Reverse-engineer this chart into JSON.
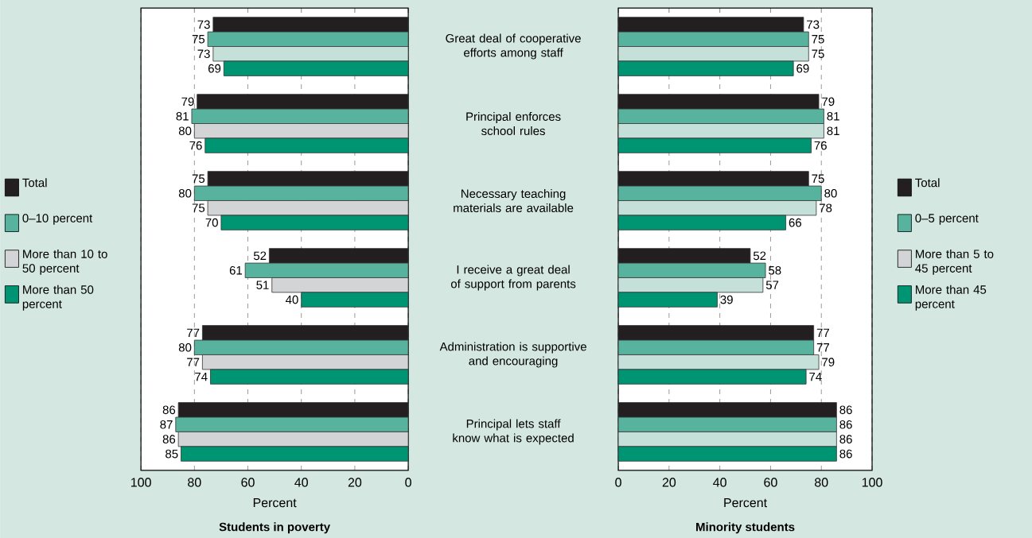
{
  "chart_data": [
    {
      "type": "bar",
      "orientation": "horizontal",
      "title": "Students in poverty",
      "xlabel": "Percent",
      "categories": [
        "Great deal of cooperative efforts among staff",
        "Principal enforces school rules",
        "Necessary teaching materials are available",
        "I receive a great deal of support from parents",
        "Administration is supportive and encouraging",
        "Principal lets staff know what is expected"
      ],
      "series": [
        {
          "name": "Total",
          "color": "#231f20",
          "values": [
            73,
            79,
            75,
            52,
            77,
            86
          ]
        },
        {
          "name": "0–10 percent",
          "color": "#58b39e",
          "values": [
            75,
            81,
            80,
            61,
            80,
            87
          ]
        },
        {
          "name": "More than 10 to 50 percent",
          "color": "#d3d4d6",
          "colors": [
            "#c5e0d8",
            "#d3d4d6",
            "#d3d4d6",
            "#d3d4d6",
            "#d3d4d6",
            "#d3d4d6"
          ],
          "values": [
            73,
            80,
            75,
            51,
            77,
            86
          ]
        },
        {
          "name": "More than 50 percent",
          "color": "#009572",
          "values": [
            69,
            76,
            70,
            40,
            74,
            85
          ]
        }
      ],
      "xlim": [
        100,
        0
      ],
      "xticks": [
        0,
        20,
        40,
        60,
        80,
        100
      ],
      "grid": "x",
      "legend": "left",
      "data_labels": true
    },
    {
      "type": "bar",
      "orientation": "horizontal",
      "title": "Minority students",
      "xlabel": "Percent",
      "categories": [
        null,
        null,
        null,
        null,
        null,
        null
      ],
      "series": [
        {
          "name": "Total",
          "color": "#231f20",
          "values": [
            73,
            79,
            75,
            52,
            77,
            86
          ]
        },
        {
          "name": "0–5 percent",
          "color": "#58b39e",
          "values": [
            75,
            81,
            80,
            58,
            77,
            86
          ]
        },
        {
          "name": "More than 5 to 45 percent",
          "color": "#d3d4d6",
          "colors": [
            "#c5e0d8",
            "#c5e0d8",
            "#c5e0d8",
            "#c5e0d8",
            "#c5e0d8",
            "#c5e0d8"
          ],
          "values": [
            75,
            81,
            78,
            57,
            79,
            86
          ]
        },
        {
          "name": "More than 45 percent",
          "color": "#009572",
          "values": [
            69,
            76,
            66,
            39,
            74,
            86
          ]
        }
      ],
      "xlim": [
        0,
        100
      ],
      "xticks": [
        0,
        20,
        40,
        60,
        80,
        100
      ],
      "grid": "x",
      "legend": "right",
      "data_labels": true,
      "tick_labels": "x"
    }
  ]
}
